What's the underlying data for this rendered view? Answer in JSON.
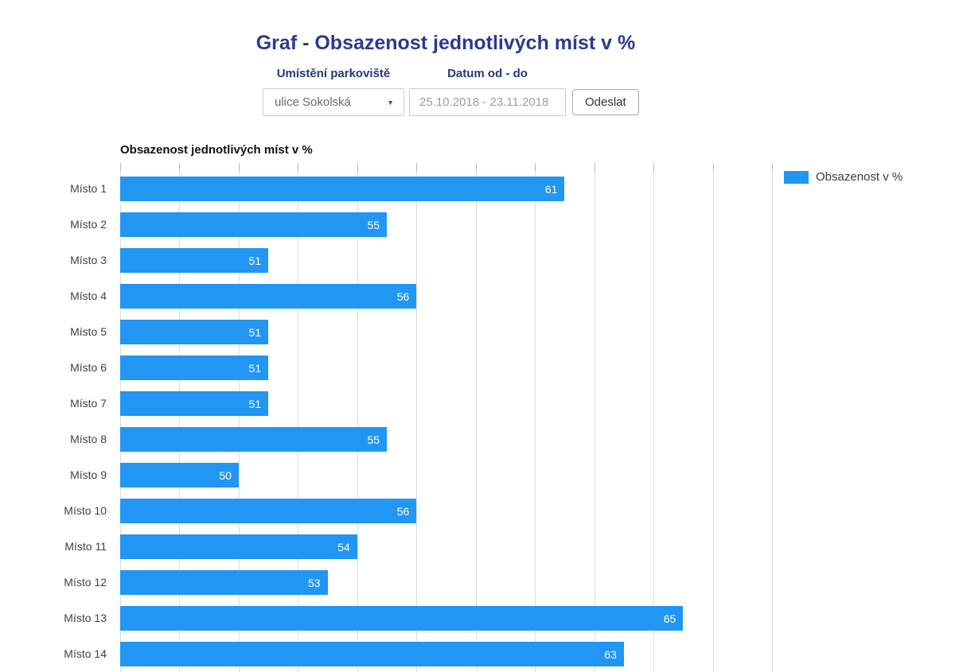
{
  "page_title": "Graf - Obsazenost jednotlivých míst v %",
  "form": {
    "location_label": "Umístění parkoviště",
    "location_value": "ulice Sokolská",
    "date_label": "Datum od - do",
    "date_value": "25.10.2018 - 23.11.2018",
    "submit_label": "Odeslat"
  },
  "chart_data": {
    "type": "bar",
    "orientation": "horizontal",
    "title": "Obsazenost jednotlivých míst v %",
    "categories": [
      "Místo 1",
      "Místo 2",
      "Místo 3",
      "Místo 4",
      "Místo 5",
      "Místo 6",
      "Místo 7",
      "Místo 8",
      "Místo 9",
      "Místo 10",
      "Místo 11",
      "Místo 12",
      "Místo 13",
      "Místo 14"
    ],
    "values": [
      61,
      55,
      51,
      56,
      51,
      51,
      51,
      55,
      50,
      56,
      54,
      53,
      65,
      63
    ],
    "series_name": "Obsazenost v %",
    "xlim": [
      46,
      68
    ],
    "gridline_step": 2,
    "grid": true,
    "legend_position": "right",
    "bar_color": "#2196f3",
    "value_labels": "inside-end"
  },
  "colors": {
    "accent_blue": "#2196f3",
    "title_blue": "#2b3a8f",
    "label_navy": "#24397e"
  }
}
